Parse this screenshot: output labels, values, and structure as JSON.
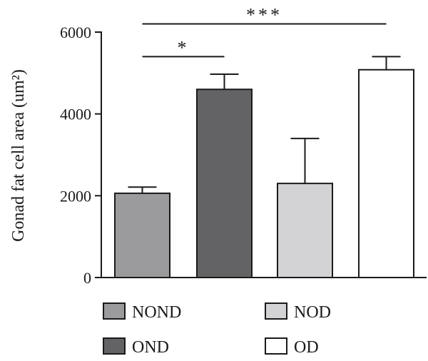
{
  "chart_data": {
    "type": "bar",
    "ylabel": "Gonad fat cell area (um²)",
    "ylim": [
      0,
      6000
    ],
    "yticks": [
      0,
      2000,
      4000,
      6000
    ],
    "grid": false,
    "legend_position": "bottom",
    "categories": [
      "NOND",
      "OND",
      "NOD",
      "OD"
    ],
    "series": [
      {
        "values": [
          2060,
          4600,
          2300,
          5080
        ],
        "error": [
          150,
          370,
          1100,
          320
        ],
        "colors": [
          "#9b9b9d",
          "#636365",
          "#d3d3d5",
          "#ffffff"
        ]
      }
    ],
    "legend": [
      {
        "label": "NOND",
        "color": "#9b9b9d"
      },
      {
        "label": "NOD",
        "color": "#d3d3d5"
      },
      {
        "label": "OND",
        "color": "#636365"
      },
      {
        "label": "OD",
        "color": "#ffffff"
      }
    ],
    "significance": [
      {
        "from": "NOND",
        "to": "OND",
        "label": "*",
        "level": 5400
      },
      {
        "from": "NOND",
        "to": "OD",
        "label": "***",
        "level": 6200
      }
    ]
  }
}
